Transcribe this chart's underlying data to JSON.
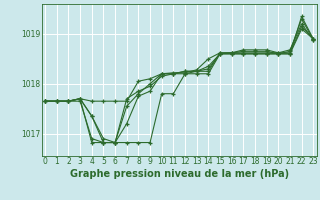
{
  "title": "Graphe pression niveau de la mer (hPa)",
  "background_color": "#cce8eb",
  "grid_color": "#ffffff",
  "line_color": "#2d6b2d",
  "hours": [
    0,
    1,
    2,
    3,
    4,
    5,
    6,
    7,
    8,
    9,
    10,
    11,
    12,
    13,
    14,
    15,
    16,
    17,
    18,
    19,
    20,
    21,
    22,
    23
  ],
  "series": [
    [
      1017.65,
      1017.65,
      1017.65,
      1017.7,
      1017.65,
      1017.65,
      1017.65,
      1017.65,
      1018.05,
      1018.1,
      1018.2,
      1018.2,
      1018.25,
      1018.25,
      1018.3,
      1018.6,
      1018.6,
      1018.6,
      1018.6,
      1018.6,
      1018.6,
      1018.6,
      1019.35,
      1018.9
    ],
    [
      1017.65,
      1017.65,
      1017.65,
      1017.7,
      1017.35,
      1016.9,
      1016.82,
      1017.7,
      1017.85,
      1017.95,
      1018.15,
      1018.2,
      1018.25,
      1018.25,
      1018.35,
      1018.6,
      1018.62,
      1018.65,
      1018.65,
      1018.65,
      1018.6,
      1018.65,
      1019.3,
      1018.88
    ],
    [
      1017.65,
      1017.65,
      1017.65,
      1017.7,
      1017.35,
      1016.82,
      1016.82,
      1017.55,
      1017.8,
      1018.0,
      1018.2,
      1018.22,
      1018.22,
      1018.28,
      1018.5,
      1018.62,
      1018.62,
      1018.68,
      1018.68,
      1018.68,
      1018.62,
      1018.68,
      1019.2,
      1018.88
    ],
    [
      1017.65,
      1017.65,
      1017.65,
      1017.65,
      1016.9,
      1016.82,
      1016.82,
      1017.2,
      1017.75,
      1017.85,
      1018.2,
      1018.2,
      1018.2,
      1018.25,
      1018.25,
      1018.62,
      1018.62,
      1018.62,
      1018.62,
      1018.62,
      1018.62,
      1018.62,
      1019.15,
      1018.9
    ]
  ],
  "series2": [
    [
      1017.65,
      1017.65,
      1017.65,
      1017.7,
      1016.82,
      1016.82,
      1016.82,
      1016.82,
      1016.82,
      1016.82,
      1017.8,
      1017.8,
      1018.2,
      1018.2,
      1018.2,
      1018.6,
      1018.6,
      1018.6,
      1018.6,
      1018.6,
      1018.6,
      1018.6,
      1019.1,
      1018.9
    ]
  ],
  "ylim": [
    1016.55,
    1019.6
  ],
  "yticks": [
    1017,
    1018,
    1019
  ],
  "xlim": [
    -0.3,
    23.3
  ],
  "xticks": [
    0,
    1,
    2,
    3,
    4,
    5,
    6,
    7,
    8,
    9,
    10,
    11,
    12,
    13,
    14,
    15,
    16,
    17,
    18,
    19,
    20,
    21,
    22,
    23
  ],
  "marker": "+",
  "markersize": 3,
  "linewidth": 0.8,
  "xlabel_fontsize": 7,
  "tick_fontsize": 5.5
}
